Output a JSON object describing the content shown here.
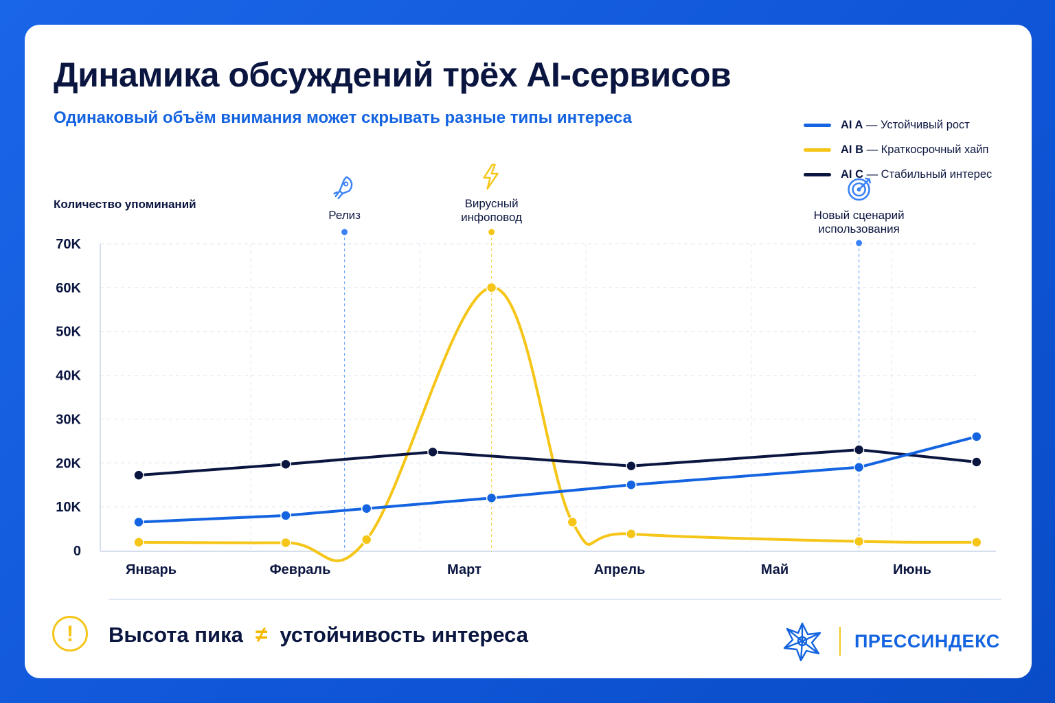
{
  "title": "Динамика обсуждений трёх AI-сервисов",
  "subtitle": "Одинаковый объём внимания может скрывать разные типы интереса",
  "legend": [
    {
      "name": "AI A",
      "desc": " — Устойчивый рост",
      "color": "#1463e0"
    },
    {
      "name": "AI B",
      "desc": " — Краткосрочный хайп",
      "color": "#f5c518"
    },
    {
      "name": "AI C",
      "desc": " — Стабильный интерес",
      "color": "#0b1640"
    }
  ],
  "annotations": [
    {
      "x": 2.4,
      "lines": [
        "Релиз"
      ],
      "icon": "rocket-icon",
      "color": "#3b82f6"
    },
    {
      "x": 3.4,
      "lines": [
        "Вирусный",
        "инфоповод"
      ],
      "icon": "lightning-icon",
      "color": "#f5c518"
    },
    {
      "x": 5.9,
      "lines": [
        "Новый сценарий",
        "использования"
      ],
      "icon": "target-icon",
      "color": "#3b82f6"
    }
  ],
  "footer": {
    "left": "Высота пика",
    "neq": "≠",
    "right": "устойчивость интереса",
    "warn": "!",
    "brand": "ПРЕССИНДЕКС"
  },
  "chart_data": {
    "type": "line",
    "ylabel": "Количество упоминаний",
    "xlabel": "",
    "categories": [
      "Январь",
      "Февраль",
      "Март",
      "Апрель",
      "Май",
      "Июнь"
    ],
    "ylim": [
      0,
      70000
    ],
    "yticks": [
      0,
      10000,
      20000,
      30000,
      40000,
      50000,
      60000,
      70000
    ],
    "yticklabels": [
      "0",
      "10K",
      "20K",
      "30K",
      "40K",
      "50K",
      "60K",
      "70K"
    ],
    "grid": true,
    "legend_position": "top-right",
    "series": [
      {
        "name": "AI A",
        "color": "#1463e0",
        "curve": "linear",
        "x": [
          1,
          2,
          2.55,
          3.4,
          4.35,
          5.9,
          6.7
        ],
        "y": [
          6500,
          8000,
          9600,
          12000,
          15000,
          19000,
          26000
        ]
      },
      {
        "name": "AI B",
        "color": "#f5c518",
        "curve": "smooth",
        "x": [
          1,
          2,
          2.55,
          3.4,
          3.95,
          4.35,
          5.9,
          6.7
        ],
        "y": [
          1900,
          1800,
          2500,
          60000,
          6500,
          3800,
          2100,
          1900
        ]
      },
      {
        "name": "AI C",
        "color": "#0b1640",
        "curve": "linear",
        "x": [
          1,
          2,
          3,
          4.35,
          5.9,
          6.7
        ],
        "y": [
          17200,
          19700,
          22500,
          19300,
          23000,
          20200
        ]
      }
    ]
  }
}
